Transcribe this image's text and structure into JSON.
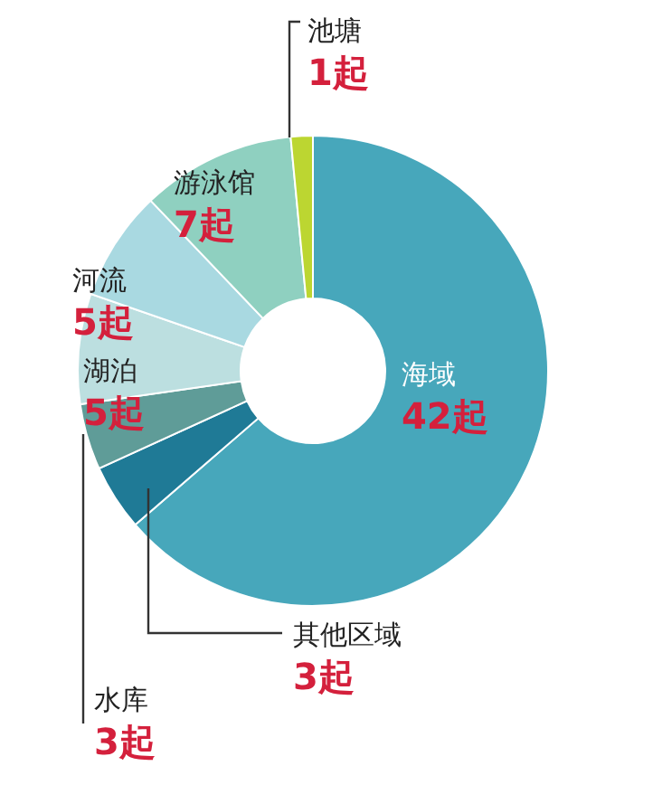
{
  "chart_data": {
    "type": "donut",
    "categories": [
      "海域",
      "其他区域",
      "水库",
      "湖泊",
      "河流",
      "游泳馆",
      "池塘"
    ],
    "values": [
      42,
      3,
      3,
      5,
      5,
      7,
      1
    ],
    "value_labels": [
      "42起",
      "3起",
      "3起",
      "5起",
      "5起",
      "7起",
      "1起"
    ],
    "colors": [
      "#47a7bb",
      "#1f7a96",
      "#5f9c98",
      "#bcdfe0",
      "#a9d9e1",
      "#8fd0c0",
      "#bcd631"
    ]
  }
}
